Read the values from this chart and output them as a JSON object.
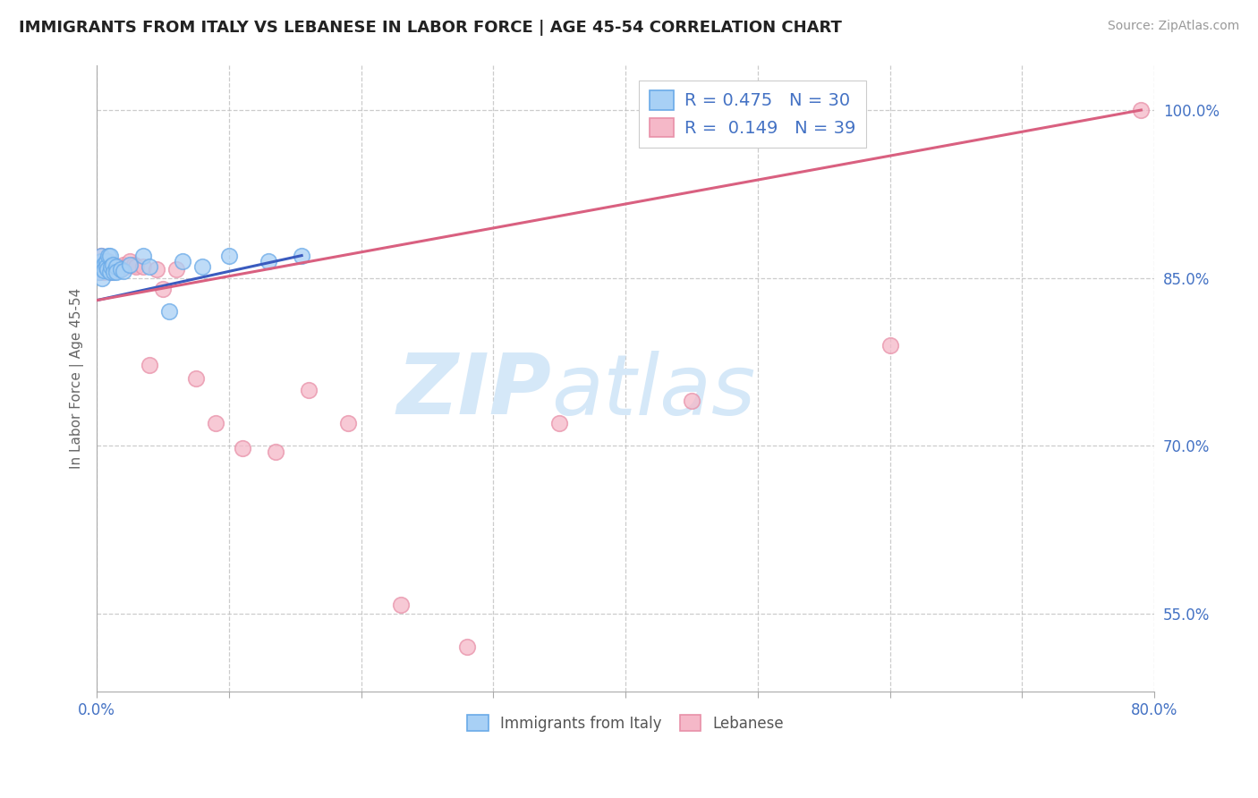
{
  "title": "IMMIGRANTS FROM ITALY VS LEBANESE IN LABOR FORCE | AGE 45-54 CORRELATION CHART",
  "source_text": "Source: ZipAtlas.com",
  "ylabel": "In Labor Force | Age 45-54",
  "xlim": [
    0.0,
    0.8
  ],
  "ylim": [
    0.48,
    1.04
  ],
  "xticks": [
    0.0,
    0.1,
    0.2,
    0.3,
    0.4,
    0.5,
    0.6,
    0.7,
    0.8
  ],
  "xticklabels": [
    "0.0%",
    "",
    "",
    "",
    "",
    "",
    "",
    "",
    "80.0%"
  ],
  "ytick_positions": [
    0.55,
    0.7,
    0.85,
    1.0
  ],
  "ytick_labels": [
    "55.0%",
    "70.0%",
    "85.0%",
    "100.0%"
  ],
  "italy_color": "#a8d0f5",
  "italy_edge": "#6aaae8",
  "lebanese_color": "#f5b8c8",
  "lebanese_edge": "#e890a8",
  "italy_R": 0.475,
  "italy_N": 30,
  "lebanese_R": 0.149,
  "lebanese_N": 39,
  "italy_line_color": "#3a5bbf",
  "lebanese_line_color": "#d96080",
  "watermark_zip": "ZIP",
  "watermark_atlas": "atlas",
  "watermark_color": "#d5e8f8",
  "italy_x": [
    0.002,
    0.002,
    0.003,
    0.003,
    0.004,
    0.004,
    0.005,
    0.005,
    0.007,
    0.007,
    0.008,
    0.009,
    0.01,
    0.01,
    0.011,
    0.012,
    0.013,
    0.015,
    0.015,
    0.018,
    0.02,
    0.025,
    0.035,
    0.04,
    0.055,
    0.065,
    0.08,
    0.1,
    0.13,
    0.155
  ],
  "italy_y": [
    0.86,
    0.855,
    0.865,
    0.87,
    0.858,
    0.85,
    0.862,
    0.857,
    0.865,
    0.86,
    0.858,
    0.87,
    0.87,
    0.855,
    0.86,
    0.862,
    0.855,
    0.86,
    0.855,
    0.858,
    0.856,
    0.862,
    0.87,
    0.86,
    0.82,
    0.865,
    0.86,
    0.87,
    0.865,
    0.87
  ],
  "lebanese_x": [
    0.002,
    0.002,
    0.003,
    0.003,
    0.004,
    0.005,
    0.005,
    0.006,
    0.007,
    0.008,
    0.009,
    0.01,
    0.011,
    0.012,
    0.013,
    0.015,
    0.018,
    0.02,
    0.022,
    0.025,
    0.028,
    0.03,
    0.035,
    0.04,
    0.045,
    0.05,
    0.06,
    0.075,
    0.09,
    0.11,
    0.135,
    0.16,
    0.19,
    0.23,
    0.28,
    0.35,
    0.45,
    0.6,
    0.79
  ],
  "lebanese_y": [
    0.86,
    0.855,
    0.865,
    0.87,
    0.86,
    0.86,
    0.855,
    0.862,
    0.865,
    0.86,
    0.865,
    0.86,
    0.855,
    0.858,
    0.858,
    0.86,
    0.858,
    0.862,
    0.86,
    0.865,
    0.862,
    0.86,
    0.86,
    0.772,
    0.858,
    0.84,
    0.858,
    0.76,
    0.72,
    0.698,
    0.695,
    0.75,
    0.72,
    0.558,
    0.52,
    0.72,
    0.74,
    0.79,
    1.0
  ],
  "italy_line_x0": 0.0,
  "italy_line_x1": 0.155,
  "italy_line_y0": 0.83,
  "italy_line_y1": 0.87,
  "lebanese_line_x0": 0.0,
  "lebanese_line_x1": 0.79,
  "lebanese_line_y0": 0.83,
  "lebanese_line_y1": 1.0
}
